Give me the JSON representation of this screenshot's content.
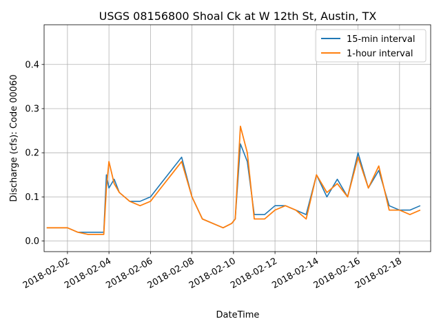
{
  "chart_data": {
    "type": "line",
    "title": "USGS 08156800 Shoal Ck at W 12th St, Austin, TX",
    "xlabel": "DateTime",
    "ylabel": "Discharge (cfs): Code 00060",
    "xlim": [
      "2018-01-31T21:00",
      "2018-02-19T12:00"
    ],
    "ylim": [
      -0.024,
      0.49
    ],
    "x_ticks": [
      "2018-02-02",
      "2018-02-04",
      "2018-02-06",
      "2018-02-08",
      "2018-02-10",
      "2018-02-12",
      "2018-02-14",
      "2018-02-16",
      "2018-02-18"
    ],
    "y_ticks": [
      0.0,
      0.1,
      0.2,
      0.3,
      0.4
    ],
    "y_tick_labels": [
      "0.0",
      "0.1",
      "0.2",
      "0.3",
      "0.4"
    ],
    "grid": true,
    "legend_position": "upper right",
    "series": [
      {
        "name": "15-min interval",
        "color": "#1f77b4",
        "x": [
          "2018-02-01T00:00",
          "2018-02-01T12:00",
          "2018-02-02T00:00",
          "2018-02-02T12:00",
          "2018-02-03T00:00",
          "2018-02-03T12:00",
          "2018-02-03T18:00",
          "2018-02-03T21:00",
          "2018-02-04T00:00",
          "2018-02-04T06:00",
          "2018-02-04T12:00",
          "2018-02-05T00:00",
          "2018-02-05T12:00",
          "2018-02-06T00:00",
          "2018-02-06T12:00",
          "2018-02-07T00:00",
          "2018-02-07T12:00",
          "2018-02-08T00:00",
          "2018-02-08T12:00",
          "2018-02-09T00:00",
          "2018-02-09T12:00",
          "2018-02-09T22:00",
          "2018-02-10T02:00",
          "2018-02-10T08:00",
          "2018-02-10T16:00",
          "2018-02-11T00:00",
          "2018-02-11T12:00",
          "2018-02-12T00:00",
          "2018-02-12T12:00",
          "2018-02-13T00:00",
          "2018-02-13T12:00",
          "2018-02-14T00:00",
          "2018-02-14T12:00",
          "2018-02-15T00:00",
          "2018-02-15T12:00",
          "2018-02-16T00:00",
          "2018-02-16T12:00",
          "2018-02-17T00:00",
          "2018-02-17T12:00",
          "2018-02-18T00:00",
          "2018-02-18T12:00",
          "2018-02-19T00:00"
        ],
        "values": [
          0.03,
          0.03,
          0.03,
          0.02,
          0.02,
          0.02,
          0.02,
          0.15,
          0.12,
          0.14,
          0.11,
          0.09,
          0.09,
          0.1,
          0.13,
          0.16,
          0.19,
          0.1,
          0.05,
          0.04,
          0.03,
          0.04,
          0.05,
          0.22,
          0.18,
          0.06,
          0.06,
          0.08,
          0.08,
          0.07,
          0.06,
          0.15,
          0.1,
          0.14,
          0.1,
          0.2,
          0.12,
          0.16,
          0.08,
          0.07,
          0.07,
          0.08
        ]
      },
      {
        "name": "1-hour interval",
        "color": "#ff7f0e",
        "x": [
          "2018-02-01T00:00",
          "2018-02-01T12:00",
          "2018-02-02T00:00",
          "2018-02-02T12:00",
          "2018-02-03T00:00",
          "2018-02-03T12:00",
          "2018-02-03T18:00",
          "2018-02-03T21:00",
          "2018-02-04T00:00",
          "2018-02-04T06:00",
          "2018-02-04T12:00",
          "2018-02-05T00:00",
          "2018-02-05T12:00",
          "2018-02-06T00:00",
          "2018-02-06T12:00",
          "2018-02-07T00:00",
          "2018-02-07T12:00",
          "2018-02-08T00:00",
          "2018-02-08T12:00",
          "2018-02-09T00:00",
          "2018-02-09T12:00",
          "2018-02-09T22:00",
          "2018-02-10T02:00",
          "2018-02-10T08:00",
          "2018-02-10T16:00",
          "2018-02-11T00:00",
          "2018-02-11T12:00",
          "2018-02-12T00:00",
          "2018-02-12T12:00",
          "2018-02-13T00:00",
          "2018-02-13T12:00",
          "2018-02-14T00:00",
          "2018-02-14T12:00",
          "2018-02-15T00:00",
          "2018-02-15T12:00",
          "2018-02-16T00:00",
          "2018-02-16T12:00",
          "2018-02-17T00:00",
          "2018-02-17T12:00",
          "2018-02-18T00:00",
          "2018-02-18T12:00",
          "2018-02-19T00:00"
        ],
        "values": [
          0.03,
          0.03,
          0.03,
          0.02,
          0.015,
          0.015,
          0.015,
          0.12,
          0.18,
          0.13,
          0.11,
          0.09,
          0.08,
          0.09,
          0.12,
          0.15,
          0.18,
          0.1,
          0.05,
          0.04,
          0.03,
          0.04,
          0.05,
          0.26,
          0.2,
          0.05,
          0.05,
          0.07,
          0.08,
          0.07,
          0.05,
          0.15,
          0.11,
          0.13,
          0.1,
          0.19,
          0.12,
          0.17,
          0.07,
          0.07,
          0.06,
          0.07
        ]
      }
    ]
  }
}
